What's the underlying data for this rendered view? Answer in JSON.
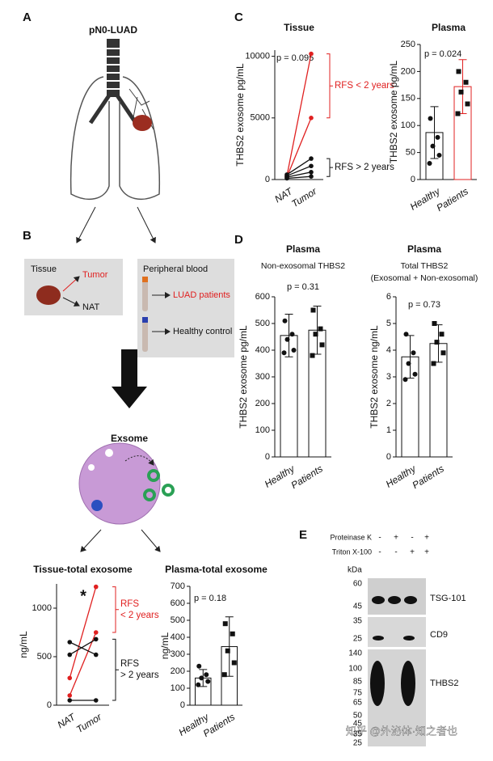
{
  "panels": [
    "A",
    "B",
    "C",
    "D",
    "E"
  ],
  "diagram": {
    "title": "pN0-LUAD",
    "tissue": "Tissue",
    "tumor": "Tumor",
    "nat": "NAT",
    "blood": "Peripheral blood",
    "patients": "LUAD patients",
    "healthy": "Healthy control",
    "exosome": "Exsome"
  },
  "blot": {
    "treatments": [
      {
        "name": "Proteinase K",
        "signs": [
          "-",
          "+",
          "-",
          "+"
        ]
      },
      {
        "name": "Triton X-100",
        "signs": [
          "-",
          "-",
          "+",
          "+"
        ]
      }
    ],
    "unit": "kDa",
    "panels": [
      {
        "label": "TSG-101",
        "markers": [
          60,
          45
        ]
      },
      {
        "label": "CD9",
        "markers": [
          35,
          25
        ]
      },
      {
        "label": "THBS2",
        "markers": [
          140,
          100,
          85,
          75,
          65,
          50,
          45,
          35,
          25
        ]
      }
    ]
  },
  "watermark": "知乎 @外泌体·知之者也",
  "chart_data": [
    {
      "type": "line",
      "title": "Tissue",
      "ylabel": "THBS2 exosome pg/mL",
      "categories": [
        "NAT",
        "Tumor"
      ],
      "ylim": [
        0,
        10500
      ],
      "yticks": [
        0,
        5000,
        10000
      ],
      "annotation": "p = 0.095",
      "series": [
        {
          "color": "#e02020",
          "values": [
            300,
            10200
          ]
        },
        {
          "color": "#e02020",
          "values": [
            200,
            5000
          ]
        },
        {
          "color": "#111111",
          "values": [
            400,
            1700
          ]
        },
        {
          "color": "#111111",
          "values": [
            300,
            1100
          ]
        },
        {
          "color": "#111111",
          "values": [
            200,
            600
          ]
        },
        {
          "color": "#111111",
          "values": [
            100,
            250
          ]
        }
      ],
      "groups": [
        {
          "label": [
            "RFS < 2 years"
          ],
          "color": "#e02020"
        },
        {
          "label": [
            "RFS > 2 years"
          ],
          "color": "#111111"
        }
      ]
    },
    {
      "type": "bar",
      "title": "Plasma",
      "ylabel": "THBS2 exosome pg/mL",
      "categories": [
        "Healthy",
        "Patients"
      ],
      "values": [
        87,
        172
      ],
      "errors": [
        48,
        50
      ],
      "colors": [
        "#111111",
        "#e02020"
      ],
      "points": [
        [
          113,
          78,
          62,
          45,
          30
        ],
        [
          200,
          180,
          162,
          140,
          122
        ]
      ],
      "ylim": [
        0,
        250
      ],
      "yticks": [
        0,
        50,
        100,
        150,
        200,
        250
      ],
      "annotation": "p = 0.024"
    },
    {
      "type": "bar",
      "title": "Plasma",
      "subtitle": [
        "Non-exosomal THBS2"
      ],
      "ylabel": "THBS2 exosome pg/mL",
      "categories": [
        "Healthy",
        "Patients"
      ],
      "values": [
        455,
        475
      ],
      "errors": [
        80,
        90
      ],
      "colors": [
        "#111111",
        "#111111"
      ],
      "points": [
        [
          510,
          460,
          440,
          400,
          390
        ],
        [
          550,
          480,
          460,
          420,
          380
        ]
      ],
      "ylim": [
        0,
        600
      ],
      "yticks": [
        0,
        100,
        200,
        300,
        400,
        500,
        600
      ],
      "annotation": "p = 0.31"
    },
    {
      "type": "bar",
      "title": "Plasma",
      "subtitle": [
        "Total THBS2",
        "(Exosomal + Non-exosomal)"
      ],
      "ylabel": "THBS2 exosome ng/mL",
      "categories": [
        "Healthy",
        "Patients"
      ],
      "values": [
        3.75,
        4.25
      ],
      "errors": [
        0.8,
        0.7
      ],
      "colors": [
        "#111111",
        "#111111"
      ],
      "points": [
        [
          4.6,
          3.9,
          3.5,
          3.1,
          2.9
        ],
        [
          5.0,
          4.6,
          4.3,
          3.9,
          3.5
        ]
      ],
      "ylim": [
        0,
        6
      ],
      "yticks": [
        0,
        1,
        2,
        3,
        4,
        5,
        6
      ],
      "annotation": "p = 0.73"
    },
    {
      "type": "line",
      "title": "Tissue-total exosome",
      "ylabel": "ng/mL",
      "categories": [
        "NAT",
        "Tumor"
      ],
      "ylim": [
        0,
        1250
      ],
      "yticks": [
        0,
        500,
        1000
      ],
      "annotation": "*",
      "series": [
        {
          "color": "#e02020",
          "values": [
            280,
            1220
          ]
        },
        {
          "color": "#e02020",
          "values": [
            100,
            750
          ]
        },
        {
          "color": "#111111",
          "values": [
            650,
            520
          ]
        },
        {
          "color": "#111111",
          "values": [
            520,
            680
          ]
        },
        {
          "color": "#111111",
          "values": [
            50,
            50
          ]
        }
      ],
      "groups": [
        {
          "label": [
            "RFS",
            "< 2 years"
          ],
          "color": "#e02020"
        },
        {
          "label": [
            "RFS",
            "> 2 years"
          ],
          "color": "#111111"
        }
      ]
    },
    {
      "type": "bar",
      "title": "Plasma-total exosome",
      "ylabel": "ng/mL",
      "categories": [
        "Healthy",
        "Patients"
      ],
      "values": [
        160,
        345
      ],
      "errors": [
        50,
        175
      ],
      "colors": [
        "#111111",
        "#111111"
      ],
      "points": [
        [
          230,
          180,
          160,
          140,
          120
        ],
        [
          480,
          420,
          320,
          250,
          180
        ]
      ],
      "ylim": [
        0,
        700
      ],
      "yticks": [
        0,
        100,
        200,
        300,
        400,
        500,
        600,
        700
      ],
      "annotation": "p = 0.18"
    }
  ]
}
